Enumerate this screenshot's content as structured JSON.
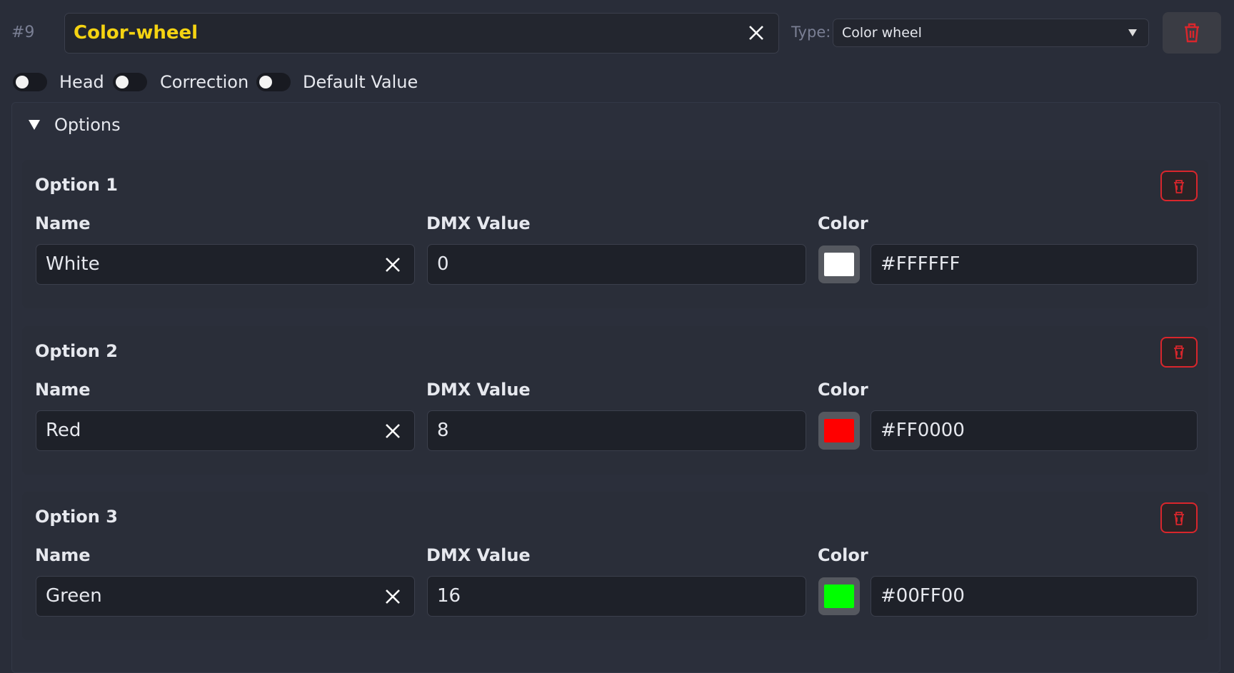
{
  "channel": {
    "number": "#9",
    "name": "Color-wheel",
    "type_label": "Type:",
    "type_value": "Color wheel"
  },
  "toggles": [
    {
      "label": "Head",
      "on": false
    },
    {
      "label": "Correction",
      "on": false
    },
    {
      "label": "Default Value",
      "on": false
    }
  ],
  "options_section": {
    "title": "Options"
  },
  "options": [
    {
      "title": "Option 1",
      "name_label": "Name",
      "name": "White",
      "dmx_label": "DMX Value",
      "dmx": 0,
      "color_label": "Color",
      "color": "#FFFFFF"
    },
    {
      "title": "Option 2",
      "name_label": "Name",
      "name": "Red",
      "dmx_label": "DMX Value",
      "dmx": 8,
      "color_label": "Color",
      "color": "#FF0000"
    },
    {
      "title": "Option 3",
      "name_label": "Name",
      "name": "Green",
      "dmx_label": "DMX Value",
      "dmx": 16,
      "color_label": "Color",
      "color": "#00FF00"
    }
  ]
}
